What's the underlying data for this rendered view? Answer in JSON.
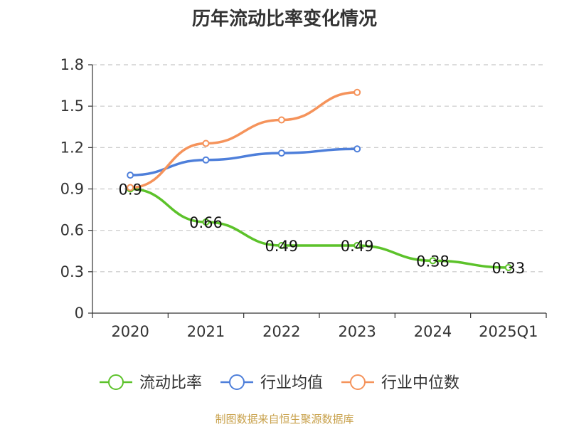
{
  "chart_data": {
    "type": "line",
    "title": "历年流动比率变化情况",
    "categories": [
      "2020",
      "2021",
      "2022",
      "2023",
      "2024",
      "2025Q1"
    ],
    "ylim": [
      0,
      1.8
    ],
    "yticks": [
      "0",
      "0.3",
      "0.6",
      "0.9",
      "1.2",
      "1.5",
      "1.8"
    ],
    "grid": true,
    "legend_position": "bottom",
    "series": [
      {
        "name": "流动比率",
        "color": "#5cc22a",
        "values": [
          0.9,
          0.66,
          0.49,
          0.49,
          0.38,
          0.33
        ],
        "labels": [
          "0.9",
          "0.66",
          "0.49",
          "0.49",
          "0.38",
          "0.33"
        ]
      },
      {
        "name": "行业均值",
        "color": "#4e7fda",
        "values": [
          1.0,
          1.11,
          1.16,
          1.19,
          null,
          null
        ]
      },
      {
        "name": "行业中位数",
        "color": "#f5935b",
        "values": [
          0.91,
          1.23,
          1.4,
          1.6,
          null,
          null
        ]
      }
    ]
  },
  "footer": {
    "source": "制图数据来自恒生聚源数据库"
  }
}
